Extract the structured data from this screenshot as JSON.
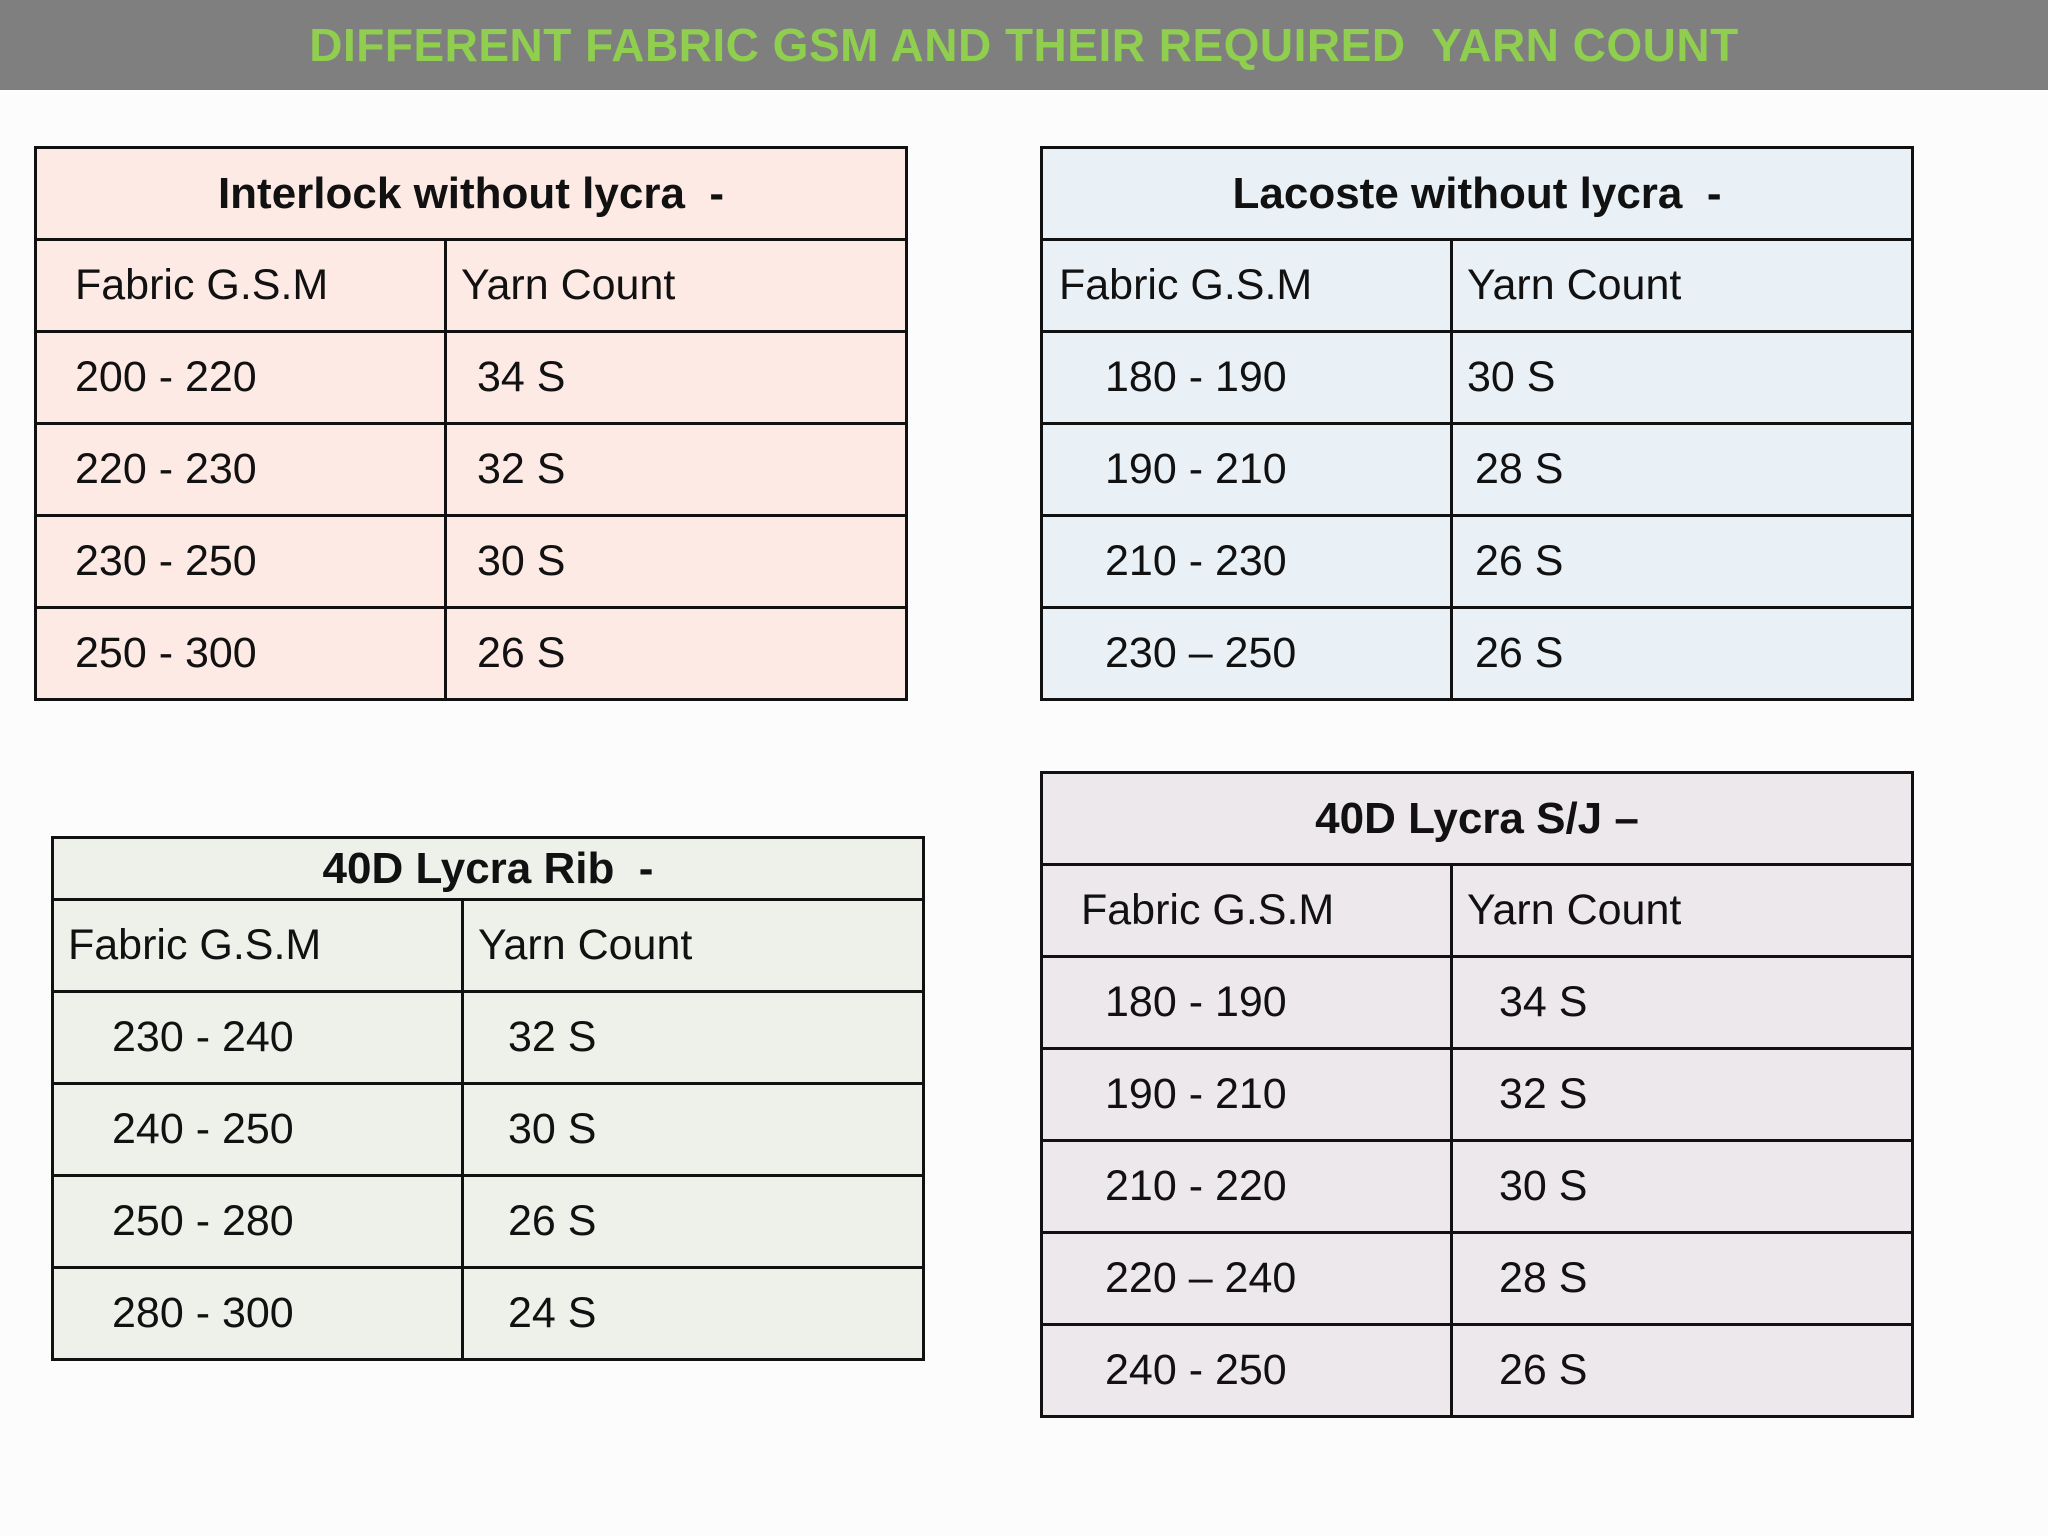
{
  "title": "DIFFERENT FABRIC GSM AND THEIR REQUIRED  YARN COUNT",
  "tables": [
    {
      "id": "interlock",
      "caption": "Interlock without lycra  -",
      "header": [
        "Fabric G.S.M",
        "Yarn Count"
      ],
      "rows": [
        [
          "200 - 220",
          "34 S"
        ],
        [
          "220 - 230",
          "32 S"
        ],
        [
          "230 - 250",
          "30 S"
        ],
        [
          "250 - 300",
          "26 S"
        ]
      ]
    },
    {
      "id": "lacoste",
      "caption": "Lacoste without lycra  -",
      "header": [
        "Fabric G.S.M",
        "Yarn Count"
      ],
      "rows": [
        [
          "180 - 190",
          "30 S"
        ],
        [
          "190 - 210",
          "28 S"
        ],
        [
          "210 - 230",
          "26 S"
        ],
        [
          "230 – 250",
          "26 S"
        ]
      ]
    },
    {
      "id": "lycra-rib",
      "caption": "40D Lycra Rib  -",
      "header": [
        "Fabric G.S.M",
        "Yarn Count"
      ],
      "rows": [
        [
          "230 - 240",
          "32 S"
        ],
        [
          "240 - 250",
          "30 S"
        ],
        [
          "250 - 280",
          "26 S"
        ],
        [
          "280 - 300",
          "24 S"
        ]
      ]
    },
    {
      "id": "lycra-sj",
      "caption": "40D Lycra S/J –",
      "header": [
        "Fabric G.S.M",
        "Yarn Count"
      ],
      "rows": [
        [
          "180 - 190",
          "34 S"
        ],
        [
          "190 - 210",
          "32 S"
        ],
        [
          "210 - 220",
          "30 S"
        ],
        [
          "220 – 240",
          "28 S"
        ],
        [
          "240 - 250",
          "26 S"
        ]
      ]
    }
  ],
  "colors": {
    "title_bar": "#7f7f7f",
    "title_text": "#8fce4f",
    "interlock_border": "#f0a060",
    "lacoste_border": "#4bacc6",
    "lycra_rib_border": "#9bbb59",
    "lycra_sj_border": "#8064a2"
  }
}
